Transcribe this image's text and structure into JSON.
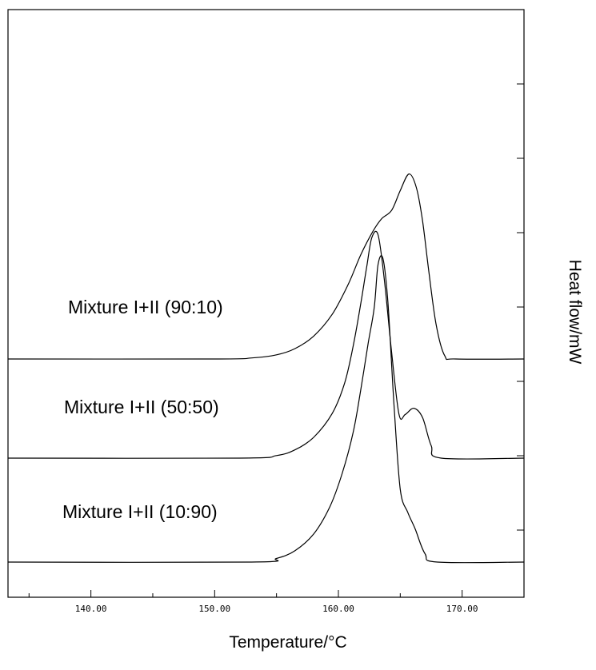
{
  "chart_data": {
    "type": "line",
    "title": "",
    "xlabel": "Temperature/°C",
    "ylabel": "Heat flow/mW",
    "xlim": [
      133.3,
      175.0
    ],
    "x_ticks": [
      140,
      150,
      160,
      170
    ],
    "x_tick_labels": [
      "140.00",
      "150.00",
      "160.00",
      "170.00"
    ],
    "grid": false,
    "legend": "none",
    "series": [
      {
        "name": "Mixture I+II (90:10)",
        "points": [
          [
            133.3,
            0.0
          ],
          [
            150.0,
            0.0
          ],
          [
            153.0,
            0.1
          ],
          [
            155.0,
            0.4
          ],
          [
            156.5,
            1.0
          ],
          [
            158.0,
            2.2
          ],
          [
            159.5,
            4.3
          ],
          [
            160.8,
            7.2
          ],
          [
            161.8,
            10.0
          ],
          [
            162.8,
            12.3
          ],
          [
            163.5,
            13.5
          ],
          [
            164.3,
            14.3
          ],
          [
            165.0,
            16.2
          ],
          [
            165.7,
            17.8
          ],
          [
            166.3,
            16.5
          ],
          [
            166.8,
            13.3
          ],
          [
            167.3,
            8.5
          ],
          [
            167.9,
            3.3
          ],
          [
            168.6,
            0.3
          ],
          [
            169.5,
            0.0
          ],
          [
            175.0,
            0.0
          ]
        ]
      },
      {
        "name": "Mixture I+II (50:50)",
        "points": [
          [
            133.3,
            0.0
          ],
          [
            152.0,
            0.0
          ],
          [
            155.0,
            0.25
          ],
          [
            156.5,
            0.8
          ],
          [
            158.0,
            2.0
          ],
          [
            159.5,
            4.3
          ],
          [
            160.5,
            7.2
          ],
          [
            161.2,
            10.8
          ],
          [
            161.8,
            14.8
          ],
          [
            162.3,
            18.5
          ],
          [
            162.7,
            21.2
          ],
          [
            163.2,
            21.5
          ],
          [
            163.7,
            17.3
          ],
          [
            164.3,
            10.2
          ],
          [
            164.9,
            4.2
          ],
          [
            165.4,
            4.2
          ],
          [
            166.1,
            4.8
          ],
          [
            166.8,
            3.9
          ],
          [
            167.5,
            1.2
          ],
          [
            168.3,
            0.0
          ],
          [
            175.0,
            0.0
          ]
        ]
      },
      {
        "name": "Mixture I+II (10:90)",
        "points": [
          [
            133.3,
            0.0
          ],
          [
            153.0,
            0.0
          ],
          [
            155.0,
            0.35
          ],
          [
            156.5,
            1.1
          ],
          [
            158.0,
            2.7
          ],
          [
            159.3,
            5.3
          ],
          [
            160.3,
            8.5
          ],
          [
            161.2,
            12.5
          ],
          [
            161.8,
            16.5
          ],
          [
            162.4,
            21.0
          ],
          [
            162.9,
            24.5
          ],
          [
            163.2,
            28.6
          ],
          [
            163.6,
            29.2
          ],
          [
            164.0,
            25.0
          ],
          [
            164.5,
            15.0
          ],
          [
            165.0,
            7.0
          ],
          [
            165.6,
            4.8
          ],
          [
            166.2,
            3.2
          ],
          [
            167.0,
            0.8
          ],
          [
            168.0,
            0.0
          ],
          [
            175.0,
            0.0
          ]
        ]
      }
    ]
  }
}
